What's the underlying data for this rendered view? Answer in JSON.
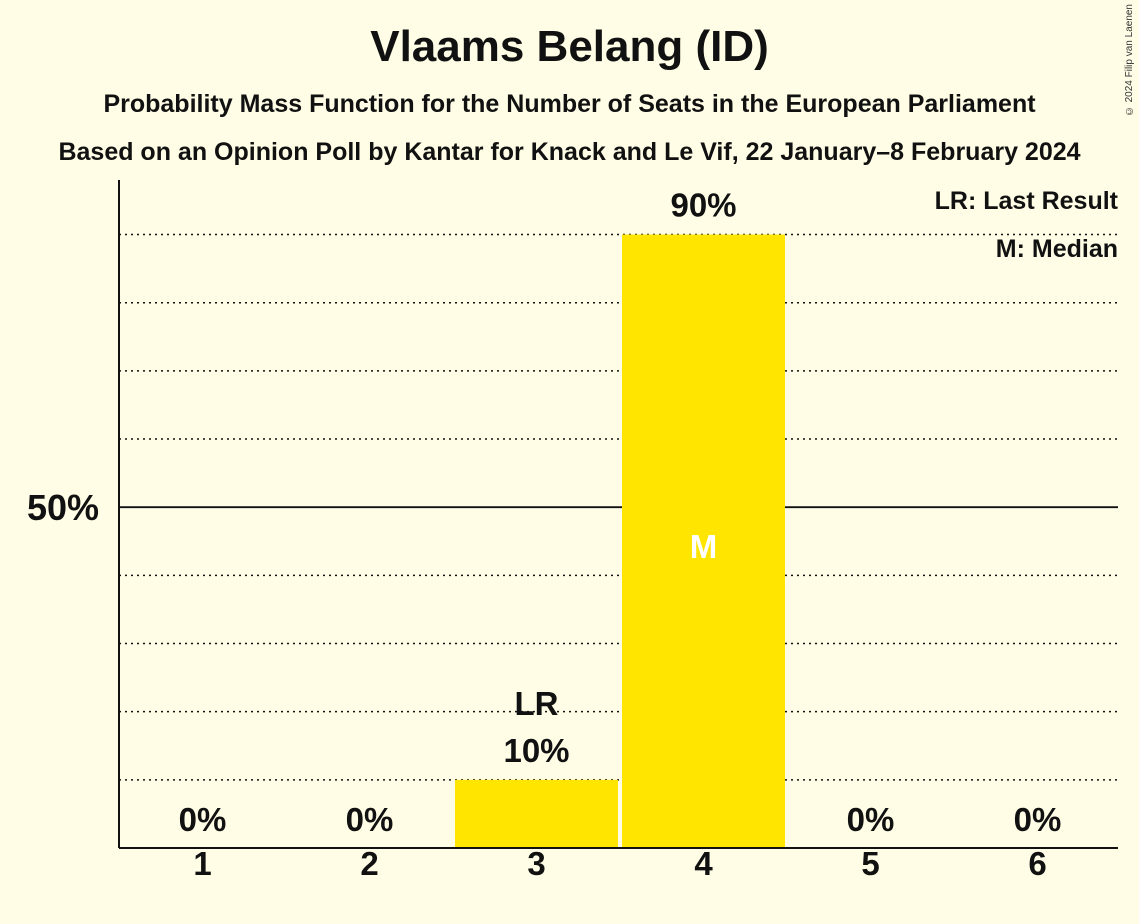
{
  "title": "Vlaams Belang (ID)",
  "subtitle": "Probability Mass Function for the Number of Seats in the European Parliament",
  "subtitle2": "Based on an Opinion Poll by Kantar for Knack and Le Vif, 22 January–8 February 2024",
  "copyright": "© 2024 Filip van Laenen",
  "colors": {
    "bar": "#FFE500",
    "background": "#FFFDE6",
    "axis": "#111111"
  },
  "legend": {
    "lr": "LR: Last Result",
    "m": "M: Median"
  },
  "chart_data": {
    "type": "bar",
    "categories": [
      "1",
      "2",
      "3",
      "4",
      "5",
      "6"
    ],
    "values": [
      0,
      0,
      10,
      90,
      0,
      0
    ],
    "value_labels": [
      "0%",
      "0%",
      "10%",
      "90%",
      "0%",
      "0%"
    ],
    "ylim": [
      0,
      98
    ],
    "y_ticks": [
      {
        "value": 50,
        "label": "50%"
      }
    ],
    "gridlines": [
      10,
      20,
      30,
      40,
      60,
      70,
      80,
      90
    ],
    "last_result": "3",
    "median": "4",
    "lr_label": "LR",
    "median_label": "M",
    "legend_position": "top-right"
  }
}
